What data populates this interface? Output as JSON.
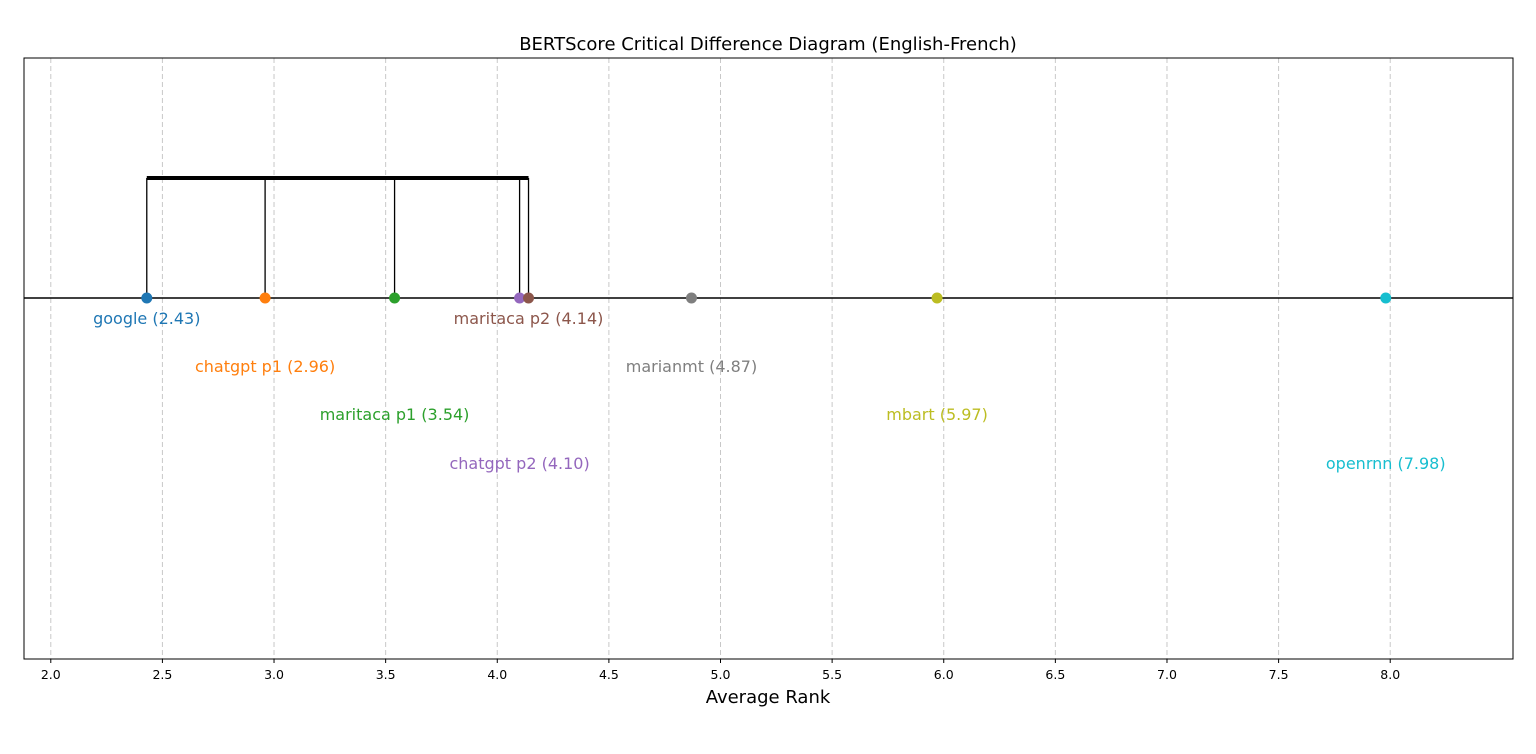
{
  "chart_data": {
    "type": "scatter",
    "title": "BERTScore Critical Difference Diagram (English-French)",
    "xlabel": "Average Rank",
    "xlim": [
      1.88,
      8.55
    ],
    "xticks": [
      "2.0",
      "2.5",
      "3.0",
      "3.5",
      "4.0",
      "4.5",
      "5.0",
      "5.5",
      "6.0",
      "6.5",
      "7.0",
      "7.5",
      "8.0"
    ],
    "grid": true,
    "points": [
      {
        "name": "google",
        "rank": 2.43,
        "label": "google (2.43)",
        "color": "#1f77b4",
        "row": 0
      },
      {
        "name": "chatgpt p1",
        "rank": 2.96,
        "label": "chatgpt p1 (2.96)",
        "color": "#ff7f0e",
        "row": 1
      },
      {
        "name": "maritaca p1",
        "rank": 3.54,
        "label": "maritaca p1 (3.54)",
        "color": "#2ca02c",
        "row": 2
      },
      {
        "name": "chatgpt p2",
        "rank": 4.1,
        "label": "chatgpt p2 (4.10)",
        "color": "#9467bd",
        "row": 3
      },
      {
        "name": "maritaca p2",
        "rank": 4.14,
        "label": "maritaca p2 (4.14)",
        "color": "#8c564b",
        "row": 0
      },
      {
        "name": "marianmt",
        "rank": 4.87,
        "label": "marianmt (4.87)",
        "color": "#7f7f7f",
        "row": 1
      },
      {
        "name": "mbart",
        "rank": 5.97,
        "label": "mbart (5.97)",
        "color": "#bcbd22",
        "row": 2
      },
      {
        "name": "openrnn",
        "rank": 7.98,
        "label": "openrnn (7.98)",
        "color": "#17becf",
        "row": 3
      }
    ],
    "cd_groups": [
      {
        "start": 2.43,
        "end": 4.14,
        "members": [
          2.43,
          2.96,
          3.54,
          4.1,
          4.14
        ]
      }
    ]
  }
}
